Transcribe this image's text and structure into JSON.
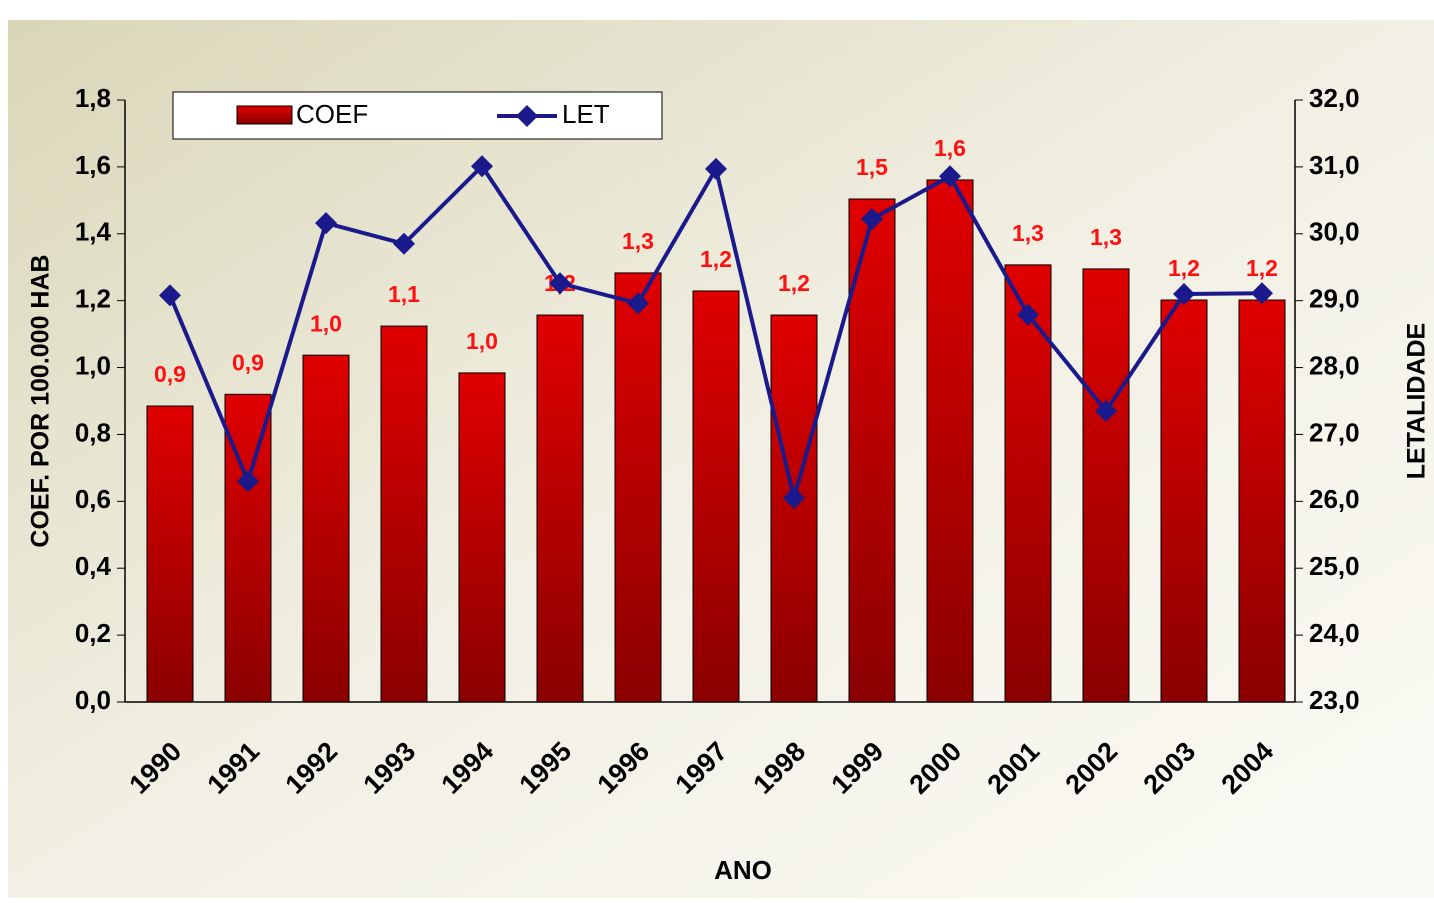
{
  "chart_data": {
    "type": "bar-line",
    "x_label": "ANO",
    "y_label": "COEF. POR 100.000 HAB",
    "y2_label": "LETALIDADE",
    "categories": [
      "1990",
      "1991",
      "1992",
      "1993",
      "1994",
      "1995",
      "1996",
      "1997",
      "1998",
      "1999",
      "2000",
      "2001",
      "2002",
      "2003",
      "2004"
    ],
    "series": [
      {
        "name": "COEF",
        "type": "bar",
        "color": "#e00000",
        "values": [
          0.885,
          0.92,
          1.037,
          1.124,
          0.984,
          1.157,
          1.283,
          1.229,
          1.157,
          1.504,
          1.561,
          1.307,
          1.295,
          1.202,
          1.202
        ],
        "value_labels": [
          "0,9",
          "0,9",
          "1,0",
          "1,1",
          "1,0",
          "1,2",
          "1,3",
          "1,2",
          "1,2",
          "1,5",
          "1,6",
          "1,3",
          "1,3",
          "1,2",
          "1,2"
        ]
      },
      {
        "name": "LET",
        "type": "line",
        "axis": "y2",
        "color": "#1a1a8c",
        "values": [
          29.08,
          26.3,
          30.16,
          29.85,
          31.01,
          29.26,
          28.96,
          30.97,
          26.05,
          30.22,
          30.86,
          28.79,
          27.35,
          29.1,
          29.11
        ]
      }
    ],
    "ylim": [
      0,
      1.8
    ],
    "yticks": [
      {
        "value": 0,
        "label": "0,0"
      },
      {
        "value": 0.2,
        "label": "0,2"
      },
      {
        "value": 0.4,
        "label": "0,4"
      },
      {
        "value": 0.6,
        "label": "0,6"
      },
      {
        "value": 0.8,
        "label": "0,8"
      },
      {
        "value": 1,
        "label": "1,0"
      },
      {
        "value": 1.2,
        "label": "1,2"
      },
      {
        "value": 1.4,
        "label": "1,4"
      },
      {
        "value": 1.6,
        "label": "1,6"
      },
      {
        "value": 1.8,
        "label": "1,8"
      }
    ],
    "y2lim": [
      23,
      32
    ],
    "y2ticks": [
      {
        "value": 23,
        "label": "23,0"
      },
      {
        "value": 24,
        "label": "24,0"
      },
      {
        "value": 25,
        "label": "25,0"
      },
      {
        "value": 26,
        "label": "26,0"
      },
      {
        "value": 27,
        "label": "27,0"
      },
      {
        "value": 28,
        "label": "28,0"
      },
      {
        "value": 29,
        "label": "29,0"
      },
      {
        "value": 30,
        "label": "30,0"
      },
      {
        "value": 31,
        "label": "31,0"
      },
      {
        "value": 32,
        "label": "32,0"
      }
    ],
    "legend": "top-left",
    "data_label_color": "#ff1010"
  }
}
